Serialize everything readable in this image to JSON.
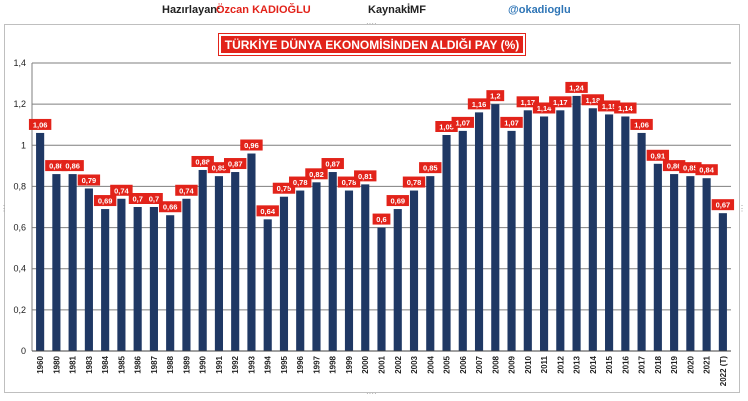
{
  "header": {
    "author_label": "Hazırlayan:",
    "author_name": "Özcan KADIOĞLU",
    "source_label": "Kaynak:",
    "source_name": "İMF",
    "handle": "@okadioglu"
  },
  "colors": {
    "bar": "#1f3864",
    "label_bg": "#e2231a",
    "title_bg": "#e2231a",
    "grid": "#7f7f7f",
    "author_name": "#e2231a",
    "handle": "#2e75b6"
  },
  "chart_data": {
    "type": "bar",
    "title": "TÜRKİYE DÜNYA EKONOMİSİNDEN ALDIĞI PAY (%)",
    "xlabel": "",
    "ylabel": "",
    "ylim": [
      0,
      1.4
    ],
    "yticks": [
      "0",
      "0,2",
      "0,4",
      "0,6",
      "0,8",
      "1",
      "1,2",
      "1,4"
    ],
    "grid": true,
    "legend": "none",
    "categories": [
      "1960",
      "1980",
      "1981",
      "1983",
      "1984",
      "1985",
      "1986",
      "1987",
      "1988",
      "1989",
      "1990",
      "1991",
      "1992",
      "1993",
      "1994",
      "1995",
      "1996",
      "1997",
      "1998",
      "1999",
      "2000",
      "2001",
      "2002",
      "2003",
      "2004",
      "2005",
      "2006",
      "2007",
      "2008",
      "2009",
      "2010",
      "2011",
      "2012",
      "2013",
      "2014",
      "2015",
      "2016",
      "2017",
      "2018",
      "2019",
      "2020",
      "2021",
      "2022 (T)"
    ],
    "values": [
      1.06,
      0.86,
      0.86,
      0.79,
      0.69,
      0.74,
      0.7,
      0.7,
      0.66,
      0.74,
      0.88,
      0.85,
      0.87,
      0.96,
      0.64,
      0.75,
      0.78,
      0.82,
      0.87,
      0.78,
      0.81,
      0.6,
      0.69,
      0.78,
      0.85,
      1.05,
      1.07,
      1.16,
      1.2,
      1.07,
      1.17,
      1.14,
      1.17,
      1.24,
      1.18,
      1.15,
      1.14,
      1.06,
      0.91,
      0.86,
      0.85,
      0.84,
      0.67
    ],
    "data_labels": [
      "1,06",
      "0,86",
      "0,86",
      "0,79",
      "0,69",
      "0,74",
      "0,7",
      "0,7",
      "0,66",
      "0,74",
      "0,88",
      "0,85",
      "0,87",
      "0,96",
      "0,64",
      "0,75",
      "0,78",
      "0,82",
      "0,87",
      "0,78",
      "0,81",
      "0,6",
      "0,69",
      "0,78",
      "0,85",
      "1,05",
      "1,07",
      "1,16",
      "1,2",
      "1,07",
      "1,17",
      "1,14",
      "1,17",
      "1,24",
      "1,18",
      "1,15",
      "1,14",
      "1,06",
      "0,91",
      "0,86",
      "0,85",
      "0,84",
      "0,67"
    ]
  }
}
